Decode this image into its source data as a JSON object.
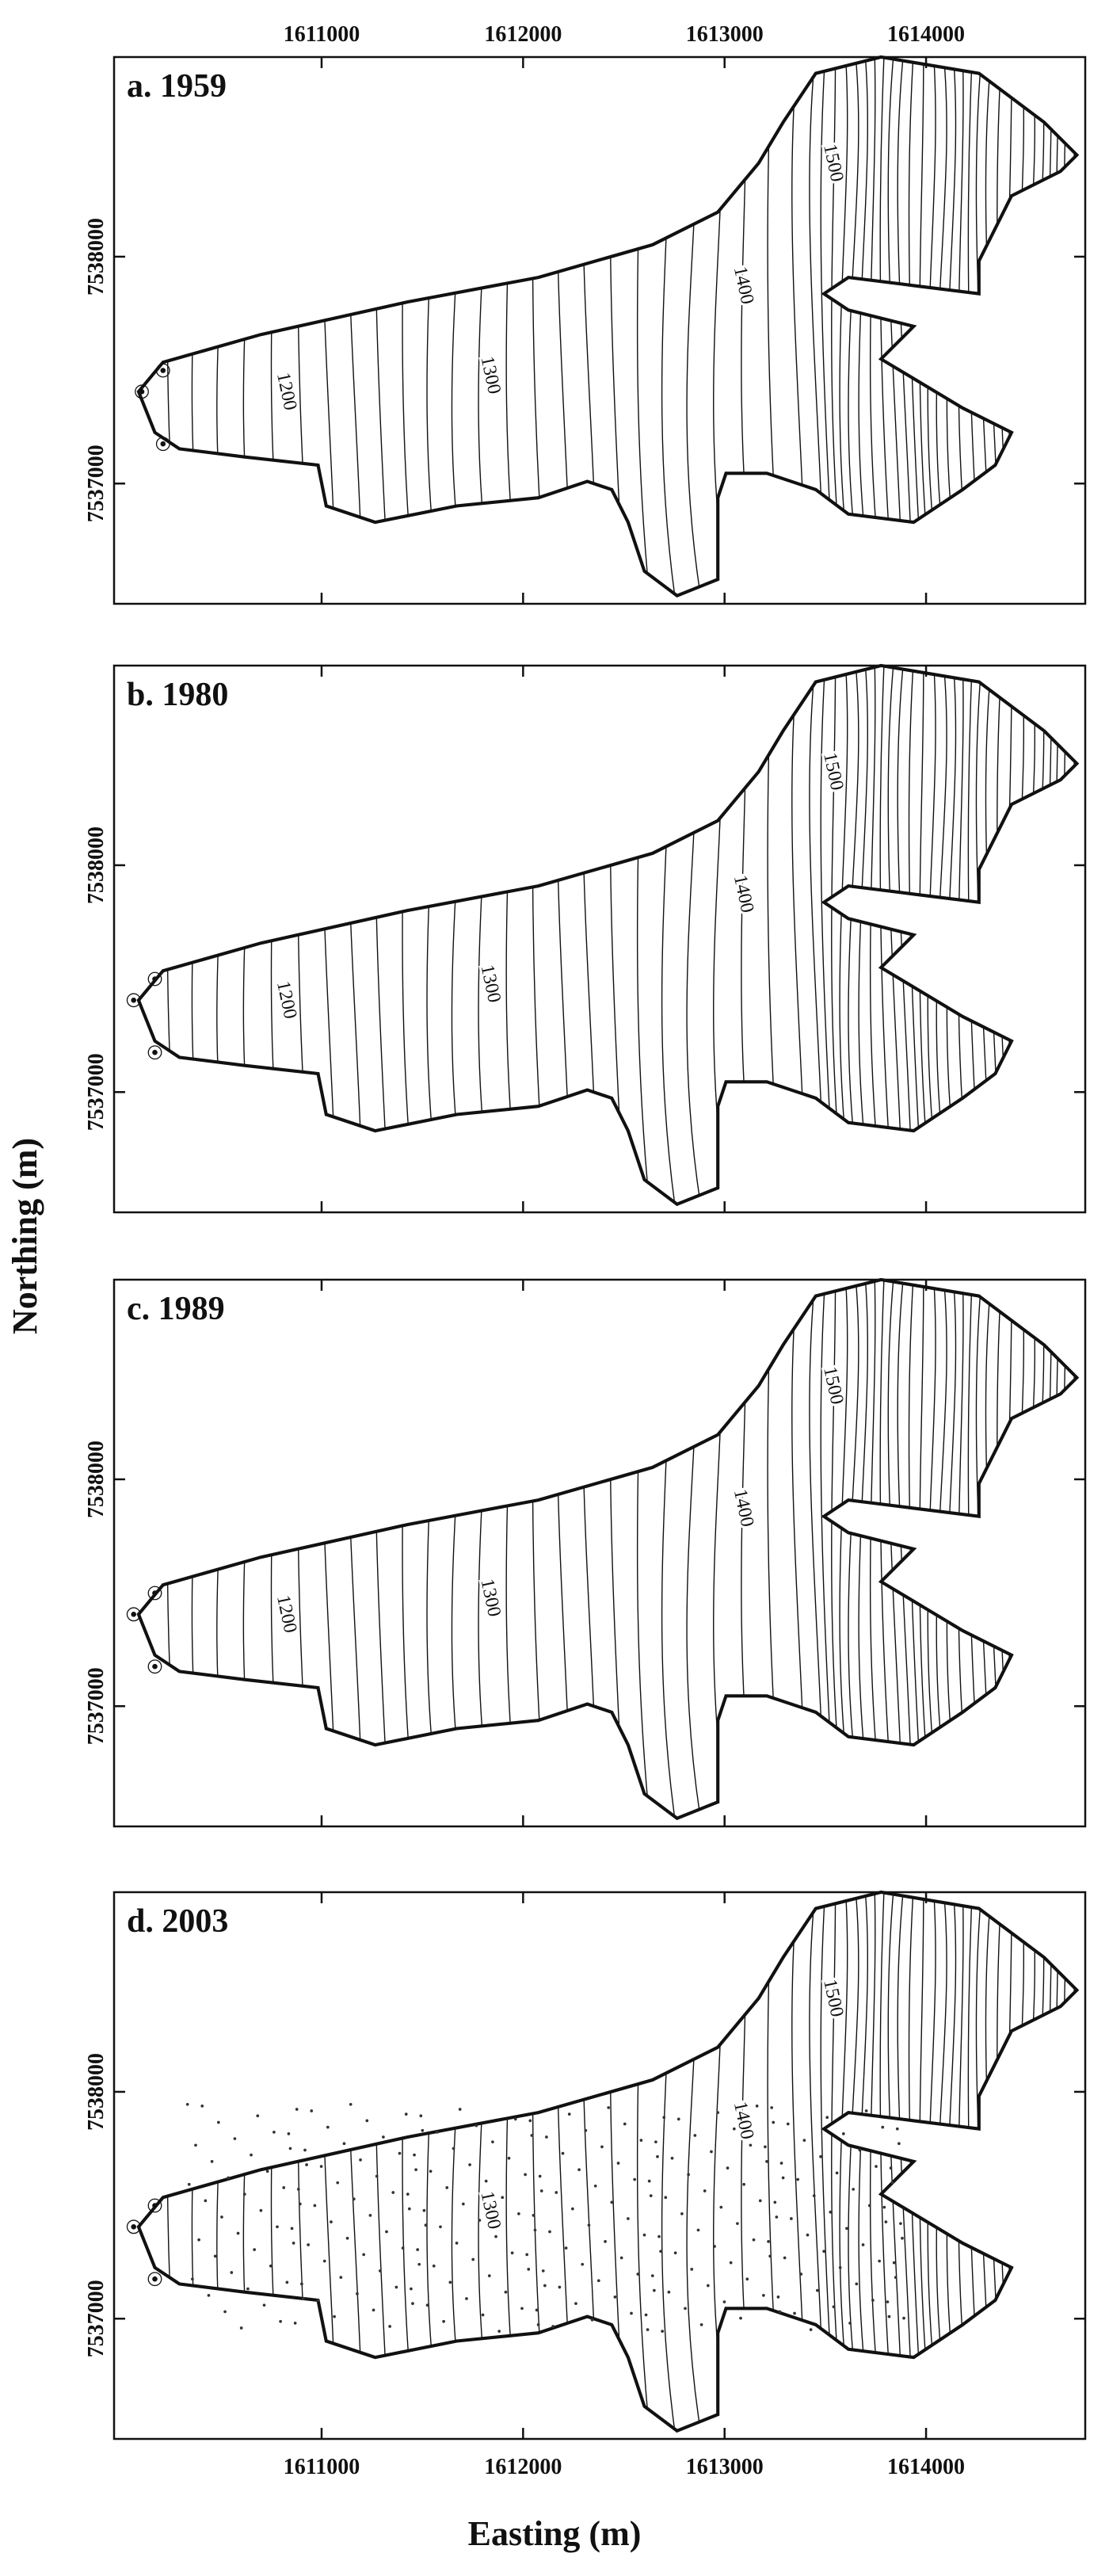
{
  "figure": {
    "xlabel": "Easting (m)",
    "ylabel": "Northing (m)"
  },
  "chart_data": [
    {
      "type": "contour",
      "title": "a. 1959",
      "xlim": [
        1609970,
        1614790
      ],
      "ylim": [
        7536470,
        7538880
      ],
      "xticks": [
        1611000,
        1612000,
        1613000,
        1614000
      ],
      "yticks": [
        7537000,
        7538000
      ],
      "contour_labels": [
        "1200",
        "1300",
        "1400",
        "1500"
      ]
    },
    {
      "type": "contour",
      "title": "b. 1980",
      "xlim": [
        1609970,
        1614790
      ],
      "ylim": [
        7536470,
        7538880
      ],
      "xticks": [
        1611000,
        1612000,
        1613000,
        1614000
      ],
      "yticks": [
        7537000,
        7538000
      ],
      "contour_labels": [
        "1200",
        "1300",
        "1400",
        "1500"
      ]
    },
    {
      "type": "contour",
      "title": "c. 1989",
      "xlim": [
        1609970,
        1614790
      ],
      "ylim": [
        7536470,
        7538880
      ],
      "xticks": [
        1611000,
        1612000,
        1613000,
        1614000
      ],
      "yticks": [
        7537000,
        7538000
      ],
      "contour_labels": [
        "1200",
        "1300",
        "1400",
        "1500"
      ]
    },
    {
      "type": "contour",
      "title": "d. 2003",
      "xlim": [
        1609970,
        1614790
      ],
      "ylim": [
        7536470,
        7538880
      ],
      "xticks": [
        1611000,
        1612000,
        1613000,
        1614000
      ],
      "yticks": [
        7537000,
        7538000
      ],
      "contour_labels": [
        "1300",
        "1400",
        "1500"
      ]
    }
  ]
}
